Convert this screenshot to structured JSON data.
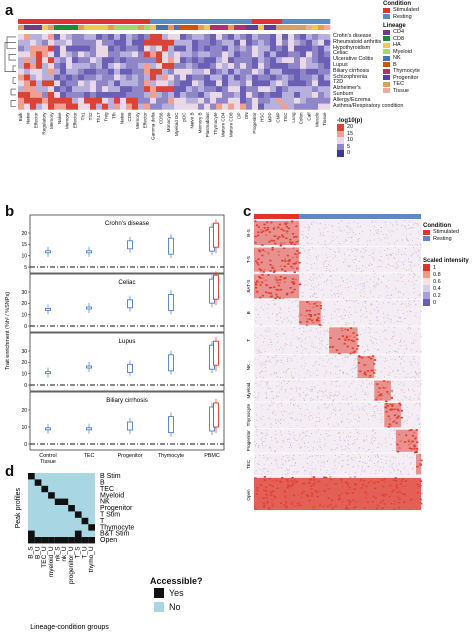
{
  "panel_a": {
    "label": "a",
    "diseases": [
      "Crohn's disease",
      "Rheumatoid arthritis",
      "Hypothyroidism",
      "Celiac",
      "Ulcerative Colitis",
      "Lupus",
      "Biliary cirrhosis",
      "Schizophrenia",
      "T2D",
      "Alzheimer's",
      "Sunburn",
      "Allergy/Eczema",
      "Asthma/Respiratory condition"
    ],
    "legend": {
      "condition_title": "Condition",
      "conditions": [
        {
          "name": "Stimulated",
          "color": "#e0342a"
        },
        {
          "name": "Resting",
          "color": "#5b8ac6"
        }
      ],
      "lineage_title": "Lineage",
      "lineages": [
        {
          "name": "CD4",
          "color": "#6a3d8f"
        },
        {
          "name": "CD8",
          "color": "#1e8a3c"
        },
        {
          "name": "HA",
          "color": "#f2c94c"
        },
        {
          "name": "Myeloid",
          "color": "#a6d96a"
        },
        {
          "name": "NK",
          "color": "#4a6fb5"
        },
        {
          "name": "B",
          "color": "#d35400"
        },
        {
          "name": "Thymocyte",
          "color": "#b03070"
        },
        {
          "name": "Progenitor",
          "color": "#5b3ea6"
        },
        {
          "name": "TEC",
          "color": "#d9a066"
        },
        {
          "name": "Tissue",
          "color": "#f4a9a0"
        }
      ],
      "scale_title": "-log10(p)",
      "scale_ticks": [
        "20",
        "15",
        "10",
        "5",
        "0"
      ]
    },
    "col_labels": [
      "Bulk",
      "Naive",
      "Effector",
      "Regulatory",
      "Memory",
      "Naive",
      "Memory",
      "Effector",
      "Th1",
      "Th2",
      "Th17",
      "Treg",
      "Tfh",
      "Naive",
      "CD8",
      "Memory",
      "Effector",
      "Gamma delta",
      "CD56",
      "Monocyte",
      "Myeloid DC",
      "pDC",
      "Naive B",
      "Memory B",
      "Plasmablast",
      "Thymocyte",
      "Mature CD4",
      "Mature CD8",
      "DP",
      "DN",
      "Progenitor",
      "HSC",
      "MPP",
      "CMP",
      "TEC",
      "Lung",
      "Colon",
      "Calf",
      "Muscle",
      "Tissue"
    ]
  },
  "panel_b": {
    "label": "b",
    "ylabel": "Trait enrichment (%h² / %SNPs)",
    "categories": [
      "Control\nTissue",
      "TEC",
      "Progenitor",
      "Thymocyte",
      "PBMC"
    ],
    "subplots": [
      {
        "title": "Crohn's disease",
        "yticks": [
          "20",
          "15",
          "10",
          "5"
        ]
      },
      {
        "title": "Celiac",
        "yticks": [
          "30",
          "20",
          "10",
          "0"
        ]
      },
      {
        "title": "Lupus",
        "yticks": [
          "30",
          "20",
          "10",
          "0"
        ]
      },
      {
        "title": "Biliary cirrhosis",
        "yticks": [
          "20",
          "10",
          "0"
        ]
      }
    ]
  },
  "panel_c": {
    "label": "c",
    "row_labels": [
      "B-S",
      "T-S",
      "BAT-S",
      "B",
      "T",
      "NK",
      "Myeloid",
      "Thymocyte",
      "Progenitor",
      "TEC",
      "Open"
    ],
    "legend": {
      "condition_title": "Condition",
      "conditions": [
        {
          "name": "Stimulated",
          "color": "#e0342a"
        },
        {
          "name": "Resting",
          "color": "#5b8ac6"
        }
      ],
      "scale_title": "Scaled intensity",
      "scale_ticks": [
        "1",
        "0.8",
        "0.6",
        "0.4",
        "0.2",
        "0"
      ]
    }
  },
  "panel_d": {
    "label": "d",
    "ylabel": "Peak profiles",
    "xlabel": "Lineage-condition groups",
    "rows": [
      "B Stim",
      "B",
      "TEC",
      "Myeloid",
      "NK",
      "Progenitor",
      "T Stim",
      "T",
      "Thymocyte",
      "B&T Stim",
      "Open"
    ],
    "cols": [
      "B_S",
      "B_U",
      "TEC_U",
      "myeloid_U",
      "nk_S",
      "nk_U",
      "progenitor_U",
      "T_S",
      "T_U",
      "thymo_U"
    ],
    "legend": {
      "title": "Accessible?",
      "items": [
        {
          "name": "Yes",
          "color": "#111111"
        },
        {
          "name": "No",
          "color": "#a8d6e2"
        }
      ]
    }
  }
}
